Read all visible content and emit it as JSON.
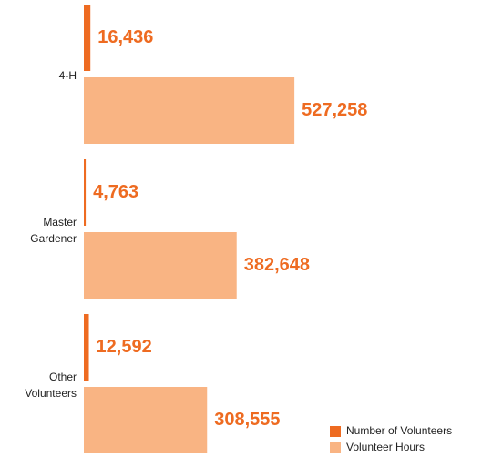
{
  "chart_data": {
    "type": "bar",
    "orientation": "horizontal",
    "categories": [
      "4-H",
      "Master Gardener",
      "Other Volunteers"
    ],
    "series": [
      {
        "name": "Number of Volunteers",
        "color": "#ee6b21",
        "values": [
          16436,
          4763,
          12592
        ],
        "value_labels": [
          "16,436",
          "4,763",
          "12,592"
        ]
      },
      {
        "name": "Volunteer Hours",
        "color": "#f9b483",
        "values": [
          527258,
          382648,
          308555
        ],
        "value_labels": [
          "527,258",
          "382,648",
          "308,555"
        ]
      }
    ],
    "xlim": [
      0,
      600000
    ],
    "legend": "lower right"
  }
}
